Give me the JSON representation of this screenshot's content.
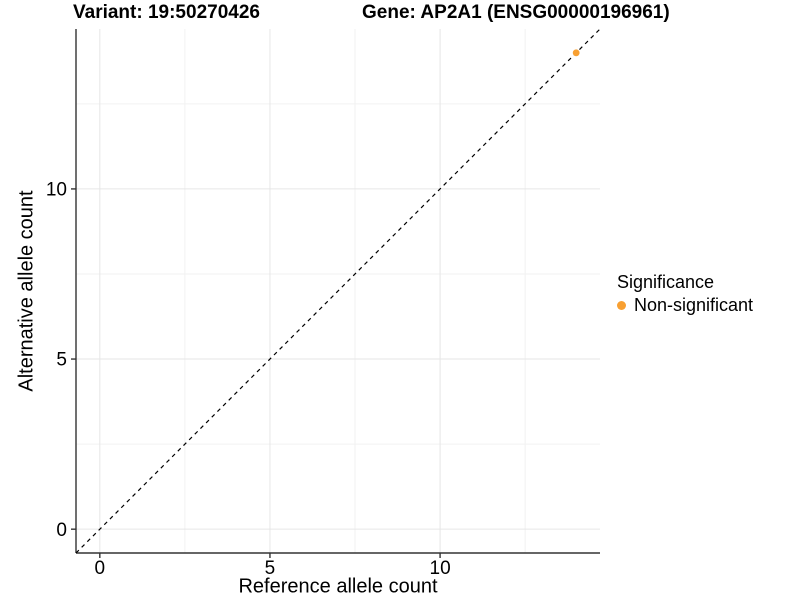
{
  "chart_data": {
    "type": "scatter",
    "title_variant": "Variant: 19:50270426",
    "title_gene": "Gene: AP2A1 (ENSG00000196961)",
    "xlabel": "Reference allele count",
    "ylabel": "Alternative allele count",
    "xlim": [
      -0.7,
      14.7
    ],
    "ylim": [
      -0.7,
      14.7
    ],
    "x_major_ticks": [
      0,
      5,
      10
    ],
    "y_major_ticks": [
      0,
      5,
      10
    ],
    "x_minor_ticks": [
      2.5,
      7.5,
      12.5
    ],
    "y_minor_ticks": [
      2.5,
      7.5,
      12.5
    ],
    "grid": "major+minor",
    "identity_line": {
      "slope": 1,
      "intercept": 0,
      "style": "dashed",
      "color": "#000000"
    },
    "series": [
      {
        "name": "Non-significant",
        "color": "#F8A032",
        "points": [
          {
            "x": 14,
            "y": 14
          }
        ]
      }
    ],
    "legend_position": "right"
  },
  "legend": {
    "title": "Significance",
    "items": [
      {
        "label": "Non-significant",
        "color": "#F8A032"
      }
    ]
  },
  "style": {
    "background": "#FFFFFF",
    "axis_color": "#333333",
    "tick_label_color": "#000000",
    "grid_major_color": "#E6E6E6",
    "grid_minor_color": "#F2F2F2",
    "point_color": "#F8A032",
    "tick_font_size": 19
  }
}
